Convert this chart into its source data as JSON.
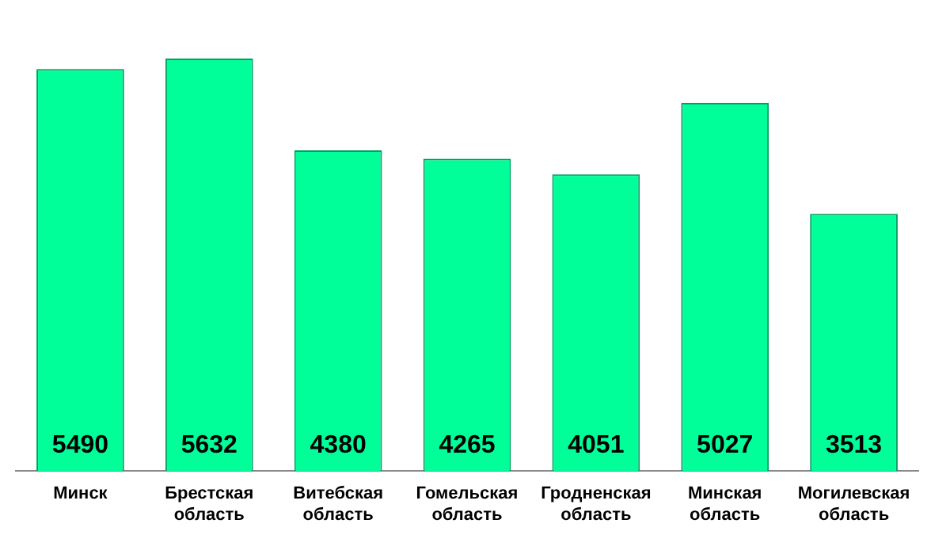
{
  "chart_data": {
    "type": "bar",
    "categories": [
      "Минск",
      "Брестская область",
      "Витебская область",
      "Гомельская область",
      "Гродненская область",
      "Минская область",
      "Могилевская область"
    ],
    "values": [
      5490,
      5632,
      4380,
      4265,
      4051,
      5027,
      3513
    ],
    "color": "#00ff99",
    "data_labels": true,
    "grid": false,
    "legend": false
  }
}
